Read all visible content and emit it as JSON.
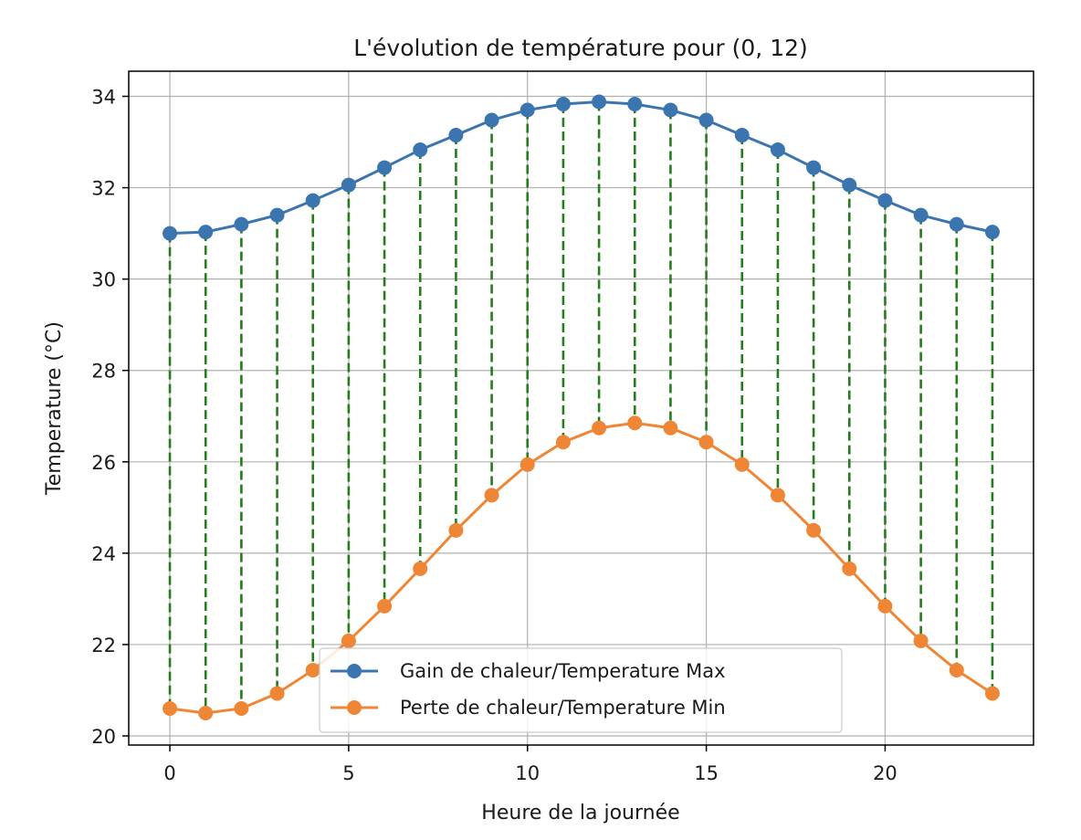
{
  "chart_data": {
    "type": "line",
    "title": "L'évolution de température pour (0, 12)",
    "xlabel": "Heure de la journée",
    "ylabel": "Temperature (°C)",
    "xlim": [
      -1.15,
      24.15
    ],
    "ylim": [
      19.8,
      34.55
    ],
    "xticks": [
      0,
      5,
      10,
      15,
      20
    ],
    "yticks": [
      20,
      22,
      24,
      26,
      28,
      30,
      32,
      34
    ],
    "grid": true,
    "legend_position": "lower-center",
    "x": [
      0,
      1,
      2,
      3,
      4,
      5,
      6,
      7,
      8,
      9,
      10,
      11,
      12,
      13,
      14,
      15,
      16,
      17,
      18,
      19,
      20,
      21,
      22,
      23
    ],
    "series": [
      {
        "name": "Gain de chaleur/Temperature Max",
        "color": "#3a75af",
        "marker": "circle",
        "values": [
          31.0,
          31.03,
          31.2,
          31.4,
          31.72,
          32.06,
          32.44,
          32.83,
          33.15,
          33.48,
          33.7,
          33.83,
          33.88,
          33.83,
          33.7,
          33.48,
          33.15,
          32.83,
          32.44,
          32.06,
          31.72,
          31.4,
          31.2,
          31.03
        ]
      },
      {
        "name": "Perte de chaleur/Temperature Min",
        "color": "#ef8636",
        "marker": "circle",
        "values": [
          20.6,
          20.5,
          20.6,
          20.93,
          21.44,
          22.08,
          22.84,
          23.66,
          24.5,
          25.27,
          25.94,
          26.43,
          26.74,
          26.85,
          26.74,
          26.43,
          25.94,
          25.27,
          24.5,
          23.66,
          22.84,
          22.08,
          21.44,
          20.93
        ]
      }
    ],
    "connectors": {
      "style": "dashed",
      "color": "#237d1b",
      "between": "Max and Min series at each hour"
    }
  }
}
